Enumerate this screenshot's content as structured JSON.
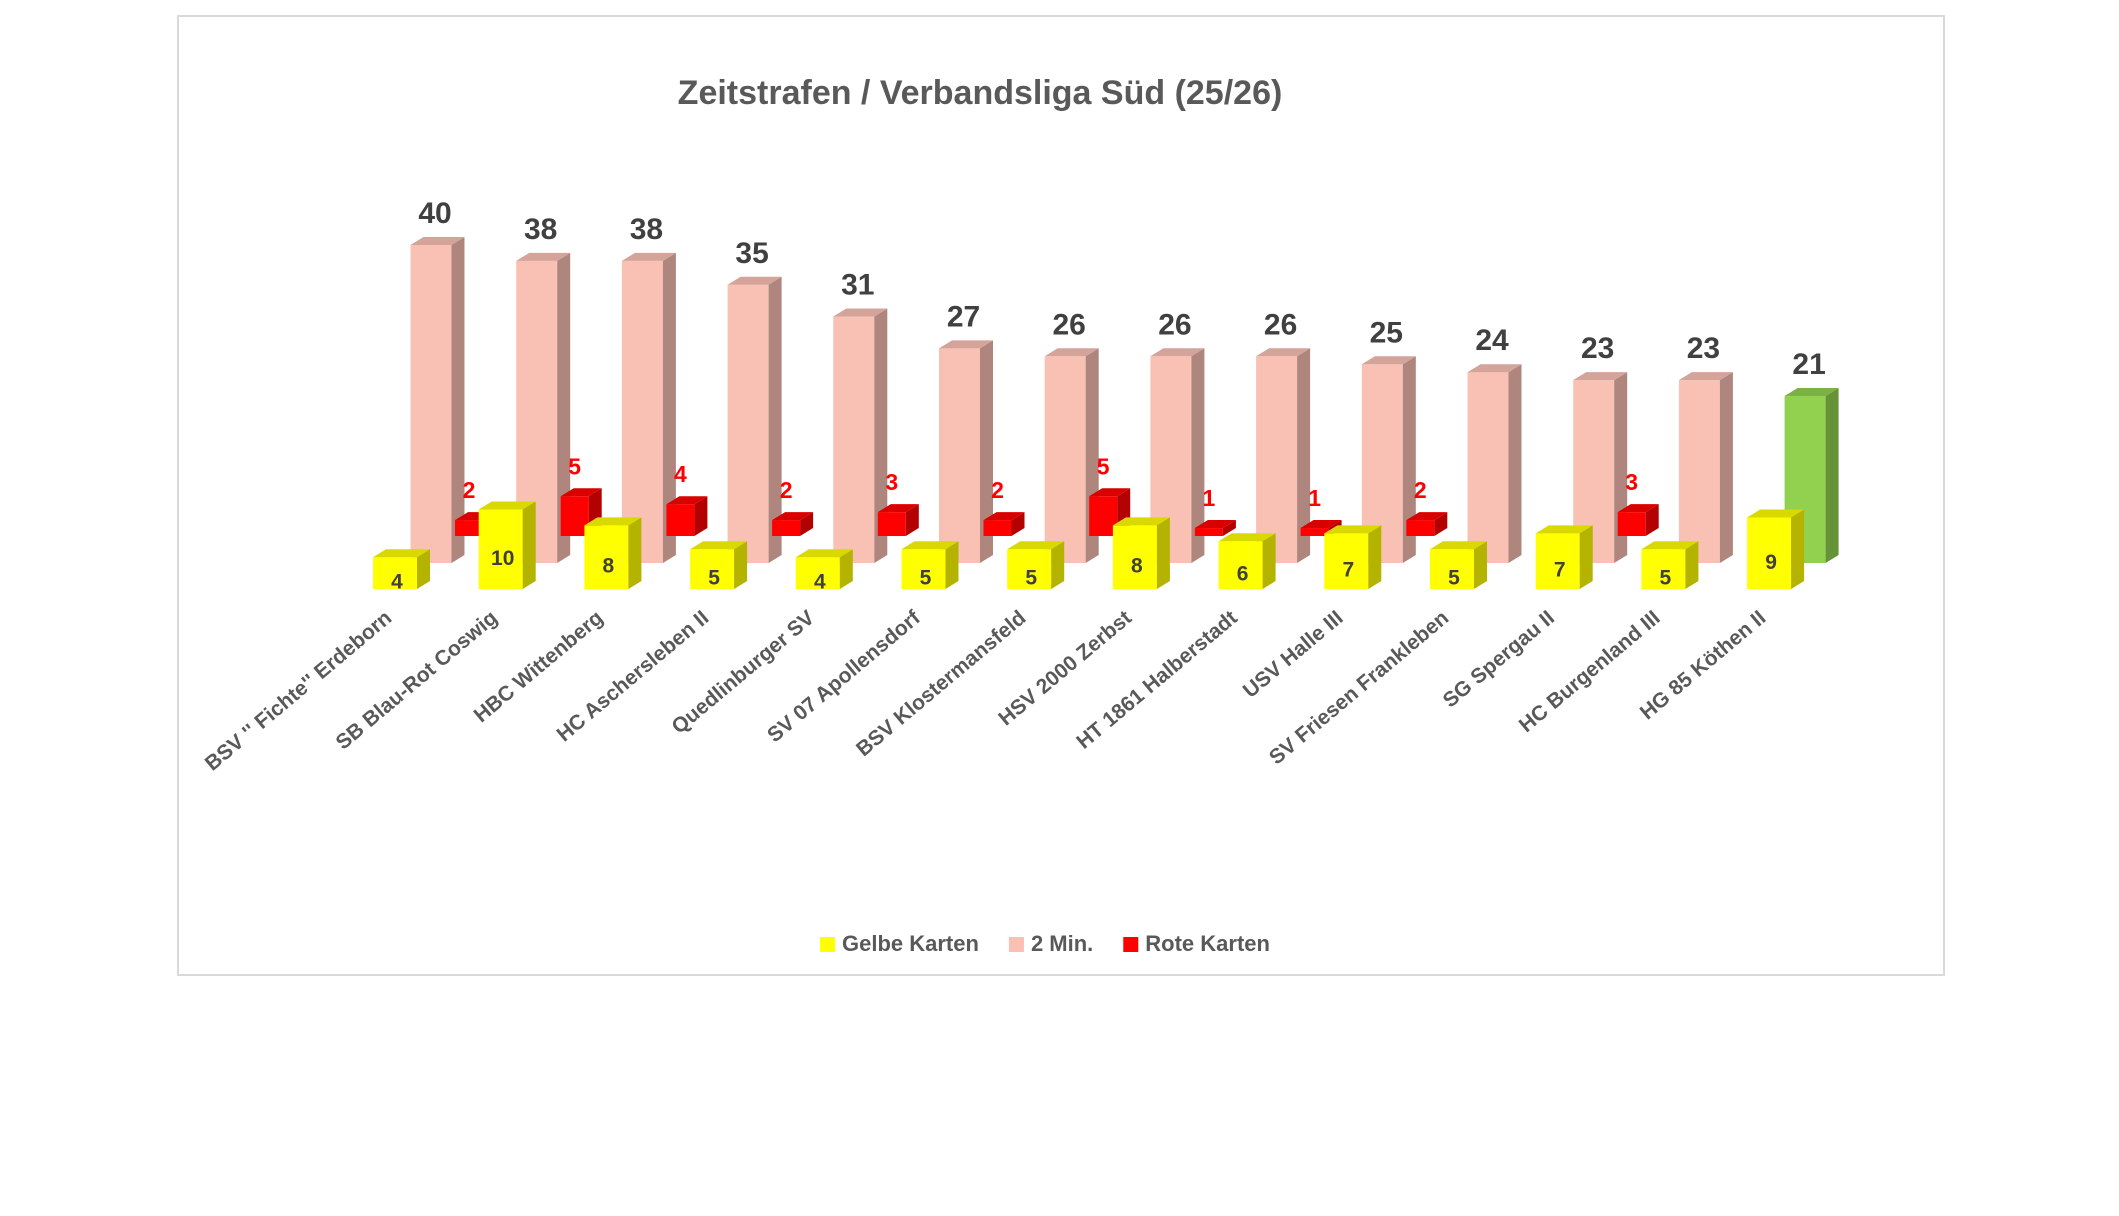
{
  "chart_data": {
    "type": "bar3d",
    "title": "Zeitstrafen / Verbandsliga Süd (25/26)",
    "categories": [
      "BSV '' Fichte'' Erdeborn",
      "SB Blau-Rot Coswig",
      "HBC Wittenberg",
      "HC Aschersleben II",
      "Quedlinburger SV",
      "SV 07 Apollensdorf",
      "BSV Klostermansfeld",
      "HSV 2000 Zerbst",
      "HT 1861 Halberstadt",
      "USV Halle III",
      "SV Friesen Frankleben",
      "SG Spergau II",
      "HC Burgenland III",
      "HG 85 Köthen II"
    ],
    "series": [
      {
        "name": "Gelbe Karten",
        "color": "#ffff00",
        "values": [
          4,
          10,
          8,
          5,
          4,
          5,
          5,
          8,
          6,
          7,
          5,
          7,
          5,
          9
        ]
      },
      {
        "name": "2 Min.",
        "color": "#f9c0b4",
        "colors": [
          "#f9c0b4",
          "#f9c0b4",
          "#f9c0b4",
          "#f9c0b4",
          "#f9c0b4",
          "#f9c0b4",
          "#f9c0b4",
          "#f9c0b4",
          "#f9c0b4",
          "#f9c0b4",
          "#f9c0b4",
          "#f9c0b4",
          "#f9c0b4",
          "#92d050"
        ],
        "values": [
          40,
          38,
          38,
          35,
          31,
          27,
          26,
          26,
          26,
          25,
          24,
          23,
          23,
          21
        ]
      },
      {
        "name": "Rote Karten",
        "color": "#ff0000",
        "values": [
          2,
          5,
          4,
          2,
          3,
          2,
          5,
          1,
          1,
          2,
          null,
          3,
          null,
          null
        ]
      }
    ],
    "ylim": [
      0,
      45
    ],
    "legend": "bottom"
  }
}
